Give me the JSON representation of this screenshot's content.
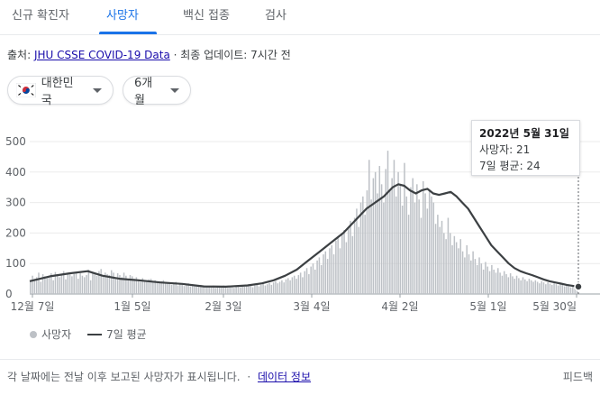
{
  "tabs": [
    {
      "label": "신규 확진자",
      "active": false
    },
    {
      "label": "사망자",
      "active": true
    },
    {
      "label": "백신 접종",
      "active": false
    },
    {
      "label": "검사",
      "active": false
    }
  ],
  "source": {
    "prefix": "출처: ",
    "link": "JHU CSSE COVID-19 Data",
    "separator": " · ",
    "updated": "최종 업데이트: 7시간 전"
  },
  "filters": {
    "country": "대한민국",
    "country_icon": "south-korea-flag-icon",
    "period": "6개월"
  },
  "tooltip": {
    "date": "2022년 5월 31일",
    "deaths": "사망자: 21",
    "avg": "7일 평균: 24"
  },
  "legend": {
    "bars": "사망자",
    "line": "7일 평균"
  },
  "footer": {
    "note": "각 날짜에는 전날 이후 보고된 사망자가 표시됩니다.",
    "sep": " · ",
    "data_link": "데이터 정보",
    "feedback": "피드백"
  },
  "colors": {
    "accent": "#1a73e8",
    "bar": "#bdc1c6",
    "avg_line": "#3c4043"
  },
  "chart_data": {
    "type": "bar",
    "ylim": [
      0,
      500
    ],
    "yticks": [
      0,
      100,
      200,
      300,
      400,
      500
    ],
    "xticks": [
      "12월 7일",
      "1월 5일",
      "2월 3일",
      "3월 4일",
      "4월 2일",
      "5월 1일",
      "5월 30일"
    ],
    "series": [
      {
        "name": "사망자",
        "type": "bar",
        "values": [
          45,
          60,
          50,
          55,
          70,
          40,
          65,
          58,
          52,
          60,
          68,
          45,
          72,
          62,
          55,
          65,
          75,
          48,
          70,
          64,
          58,
          66,
          72,
          50,
          68,
          60,
          55,
          62,
          80,
          45,
          72,
          68,
          60,
          75,
          82,
          58,
          70,
          65,
          62,
          78,
          70,
          50,
          68,
          62,
          55,
          70,
          60,
          48,
          62,
          58,
          50,
          55,
          48,
          40,
          52,
          45,
          42,
          48,
          50,
          38,
          45,
          40,
          36,
          42,
          45,
          35,
          38,
          34,
          30,
          36,
          40,
          28,
          32,
          30,
          26,
          32,
          35,
          25,
          30,
          28,
          25,
          28,
          30,
          22,
          28,
          25,
          22,
          26,
          28,
          20,
          25,
          24,
          22,
          28,
          26,
          20,
          24,
          22,
          20,
          25,
          28,
          22,
          26,
          24,
          28,
          30,
          26,
          22,
          28,
          32,
          25,
          30,
          35,
          28,
          32,
          36,
          30,
          38,
          42,
          35,
          40,
          45,
          38,
          48,
          52,
          45,
          55,
          60,
          50,
          62,
          70,
          55,
          75,
          85,
          65,
          90,
          100,
          80,
          110,
          120,
          95,
          130,
          140,
          115,
          150,
          160,
          130,
          175,
          190,
          150,
          200,
          210,
          170,
          220,
          240,
          190,
          250,
          280,
          220,
          300,
          320,
          260,
          340,
          440,
          310,
          380,
          400,
          330,
          420,
          360,
          300,
          410,
          470,
          340,
          380,
          440,
          320,
          400,
          360,
          290,
          430,
          320,
          260,
          350,
          380,
          300,
          360,
          310,
          250,
          370,
          330,
          280,
          340,
          320,
          300,
          230,
          260,
          220,
          240,
          200,
          180,
          250,
          200,
          160,
          190,
          170,
          150,
          180,
          140,
          120,
          160,
          130,
          110,
          140,
          115,
          95,
          120,
          100,
          80,
          105,
          90,
          75,
          95,
          80,
          70,
          85,
          70,
          60,
          75,
          65,
          55,
          68,
          58,
          50,
          60,
          52,
          45,
          55,
          48,
          42,
          50,
          45,
          40,
          45,
          40,
          35,
          42,
          38,
          32,
          38,
          34,
          30,
          35,
          32,
          28,
          32,
          30,
          25,
          28,
          26,
          22,
          26,
          24,
          21
        ]
      },
      {
        "name": "7일 평균",
        "type": "line",
        "points": [
          [
            0,
            42
          ],
          [
            14,
            58
          ],
          [
            28,
            68
          ],
          [
            40,
            75
          ],
          [
            50,
            60
          ],
          [
            62,
            50
          ],
          [
            75,
            45
          ],
          [
            90,
            38
          ],
          [
            105,
            33
          ],
          [
            120,
            25
          ],
          [
            135,
            24
          ],
          [
            150,
            28
          ],
          [
            160,
            35
          ],
          [
            168,
            45
          ],
          [
            176,
            60
          ],
          [
            184,
            80
          ],
          [
            192,
            110
          ],
          [
            200,
            140
          ],
          [
            208,
            170
          ],
          [
            216,
            200
          ],
          [
            224,
            240
          ],
          [
            232,
            280
          ],
          [
            238,
            300
          ],
          [
            244,
            320
          ],
          [
            250,
            350
          ],
          [
            254,
            360
          ],
          [
            258,
            355
          ],
          [
            262,
            340
          ],
          [
            266,
            330
          ],
          [
            270,
            340
          ],
          [
            274,
            345
          ],
          [
            278,
            330
          ],
          [
            282,
            325
          ],
          [
            286,
            330
          ],
          [
            290,
            335
          ],
          [
            294,
            320
          ],
          [
            298,
            300
          ],
          [
            302,
            280
          ],
          [
            306,
            250
          ],
          [
            310,
            220
          ],
          [
            314,
            190
          ],
          [
            318,
            160
          ],
          [
            322,
            140
          ],
          [
            326,
            120
          ],
          [
            330,
            100
          ],
          [
            334,
            85
          ],
          [
            338,
            75
          ],
          [
            342,
            68
          ],
          [
            346,
            62
          ],
          [
            350,
            55
          ],
          [
            354,
            48
          ],
          [
            358,
            42
          ],
          [
            362,
            38
          ],
          [
            366,
            34
          ],
          [
            370,
            30
          ],
          [
            374,
            27
          ],
          [
            378,
            24
          ]
        ]
      }
    ]
  }
}
